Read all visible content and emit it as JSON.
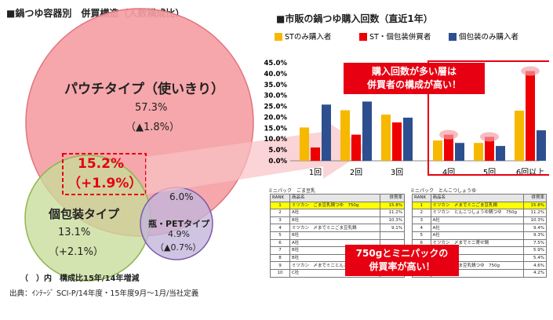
{
  "left": {
    "title": "■鍋つゆ容器別　併買構造（人数構成比）",
    "pouch": {
      "name": "パウチタイプ（使いきり）",
      "pct": "57.3%",
      "delta": "（▲1.8%）"
    },
    "overlap": {
      "pct": "15.2%",
      "delta": "（+1.9%）"
    },
    "single": {
      "name": "個包装タイプ",
      "pct": "13.1%",
      "delta": "（+2.1%）"
    },
    "bottle": {
      "name": "瓶・PETタイプ",
      "pct_top": "6.0%",
      "pct": "4.9%",
      "delta": "（▲0.7%）"
    },
    "note": "（　）内　構成比15年/14年増減",
    "source": "出典：ｲﾝﾃｰｼﾞ SCI-P/14年度・15年度9月～1月/当社定義",
    "colors": {
      "pouch": "#f5a0a4",
      "single": "#c8dc9a",
      "bottle": "#c3b5db"
    }
  },
  "right": {
    "title": "■市販の鍋つゆ購入回数（直近1年）",
    "callout_top": [
      "購入回数が多い層は",
      "併買者の構成が高い！"
    ],
    "callout_bottom": [
      "750gとミニパックの",
      "併買率が高い！"
    ]
  },
  "chart_data": {
    "type": "bar",
    "categories": [
      "1回",
      "2回",
      "3回",
      "4回",
      "5回",
      "6回以上"
    ],
    "series": [
      {
        "name": "STのみ購入者",
        "color": "#f7b800",
        "values": [
          15.3,
          23.2,
          21.2,
          9.3,
          8.2,
          23.0
        ]
      },
      {
        "name": "ST・個包装併買者",
        "color": "#ee0000",
        "values": [
          6.1,
          12.0,
          17.6,
          12.0,
          11.0,
          41.2
        ]
      },
      {
        "name": "個包装のみ購入者",
        "color": "#2e4f8f",
        "values": [
          25.8,
          27.2,
          19.8,
          8.2,
          6.8,
          14.0
        ]
      }
    ],
    "yticks": [
      "0.0%",
      "5.0%",
      "10.0%",
      "15.0%",
      "20.0%",
      "25.0%",
      "30.0%",
      "35.0%",
      "40.0%",
      "45.0%"
    ],
    "ylim": [
      0,
      45
    ]
  },
  "table_left": {
    "caption": "ミニパック　ごま豆乳",
    "headers": [
      "RANK",
      "商品名",
      "併買率"
    ],
    "rows": [
      [
        "1",
        "ミツカン　ごま豆乳鍋つゆ　750g",
        "15.8%"
      ],
      [
        "2",
        "A社",
        "11.2%"
      ],
      [
        "3",
        "B社",
        "10.3%"
      ],
      [
        "4",
        "ミツカン　〆までミニごま豆乳鍋",
        "9.1%"
      ],
      [
        "5",
        "B社",
        ""
      ],
      [
        "6",
        "A社",
        ""
      ],
      [
        "7",
        "B社",
        ""
      ],
      [
        "8",
        "B社",
        ""
      ],
      [
        "9",
        "ミツカン　〆までミニとんこつ鍋",
        "4.6%"
      ],
      [
        "10",
        "C社",
        "4.2%"
      ]
    ]
  },
  "table_right": {
    "caption": "ミニパック　とんこつしょうゆ",
    "headers": [
      "RANK",
      "商品名",
      "併買率"
    ],
    "rows": [
      [
        "1",
        "ミツカン　〆までミニごま豆乳鍋",
        "15.8%"
      ],
      [
        "2",
        "ミツカン　とんこつしょうゆ鍋つゆ　750g",
        "11.2%"
      ],
      [
        "3",
        "A社",
        "10.3%"
      ],
      [
        "4",
        "A社",
        "9.4%"
      ],
      [
        "5",
        "A社",
        "9.3%"
      ],
      [
        "6",
        "ミツカン　〆までミニ寄せ鍋",
        "7.5%"
      ],
      [
        "7",
        "B社",
        "5.9%"
      ],
      [
        "8",
        "B社",
        "5.4%"
      ],
      [
        "9",
        "ミツカン　ごま豆乳鍋つゆ　750g",
        "4.6%"
      ],
      [
        "10",
        "A社",
        "4.2%"
      ]
    ]
  }
}
